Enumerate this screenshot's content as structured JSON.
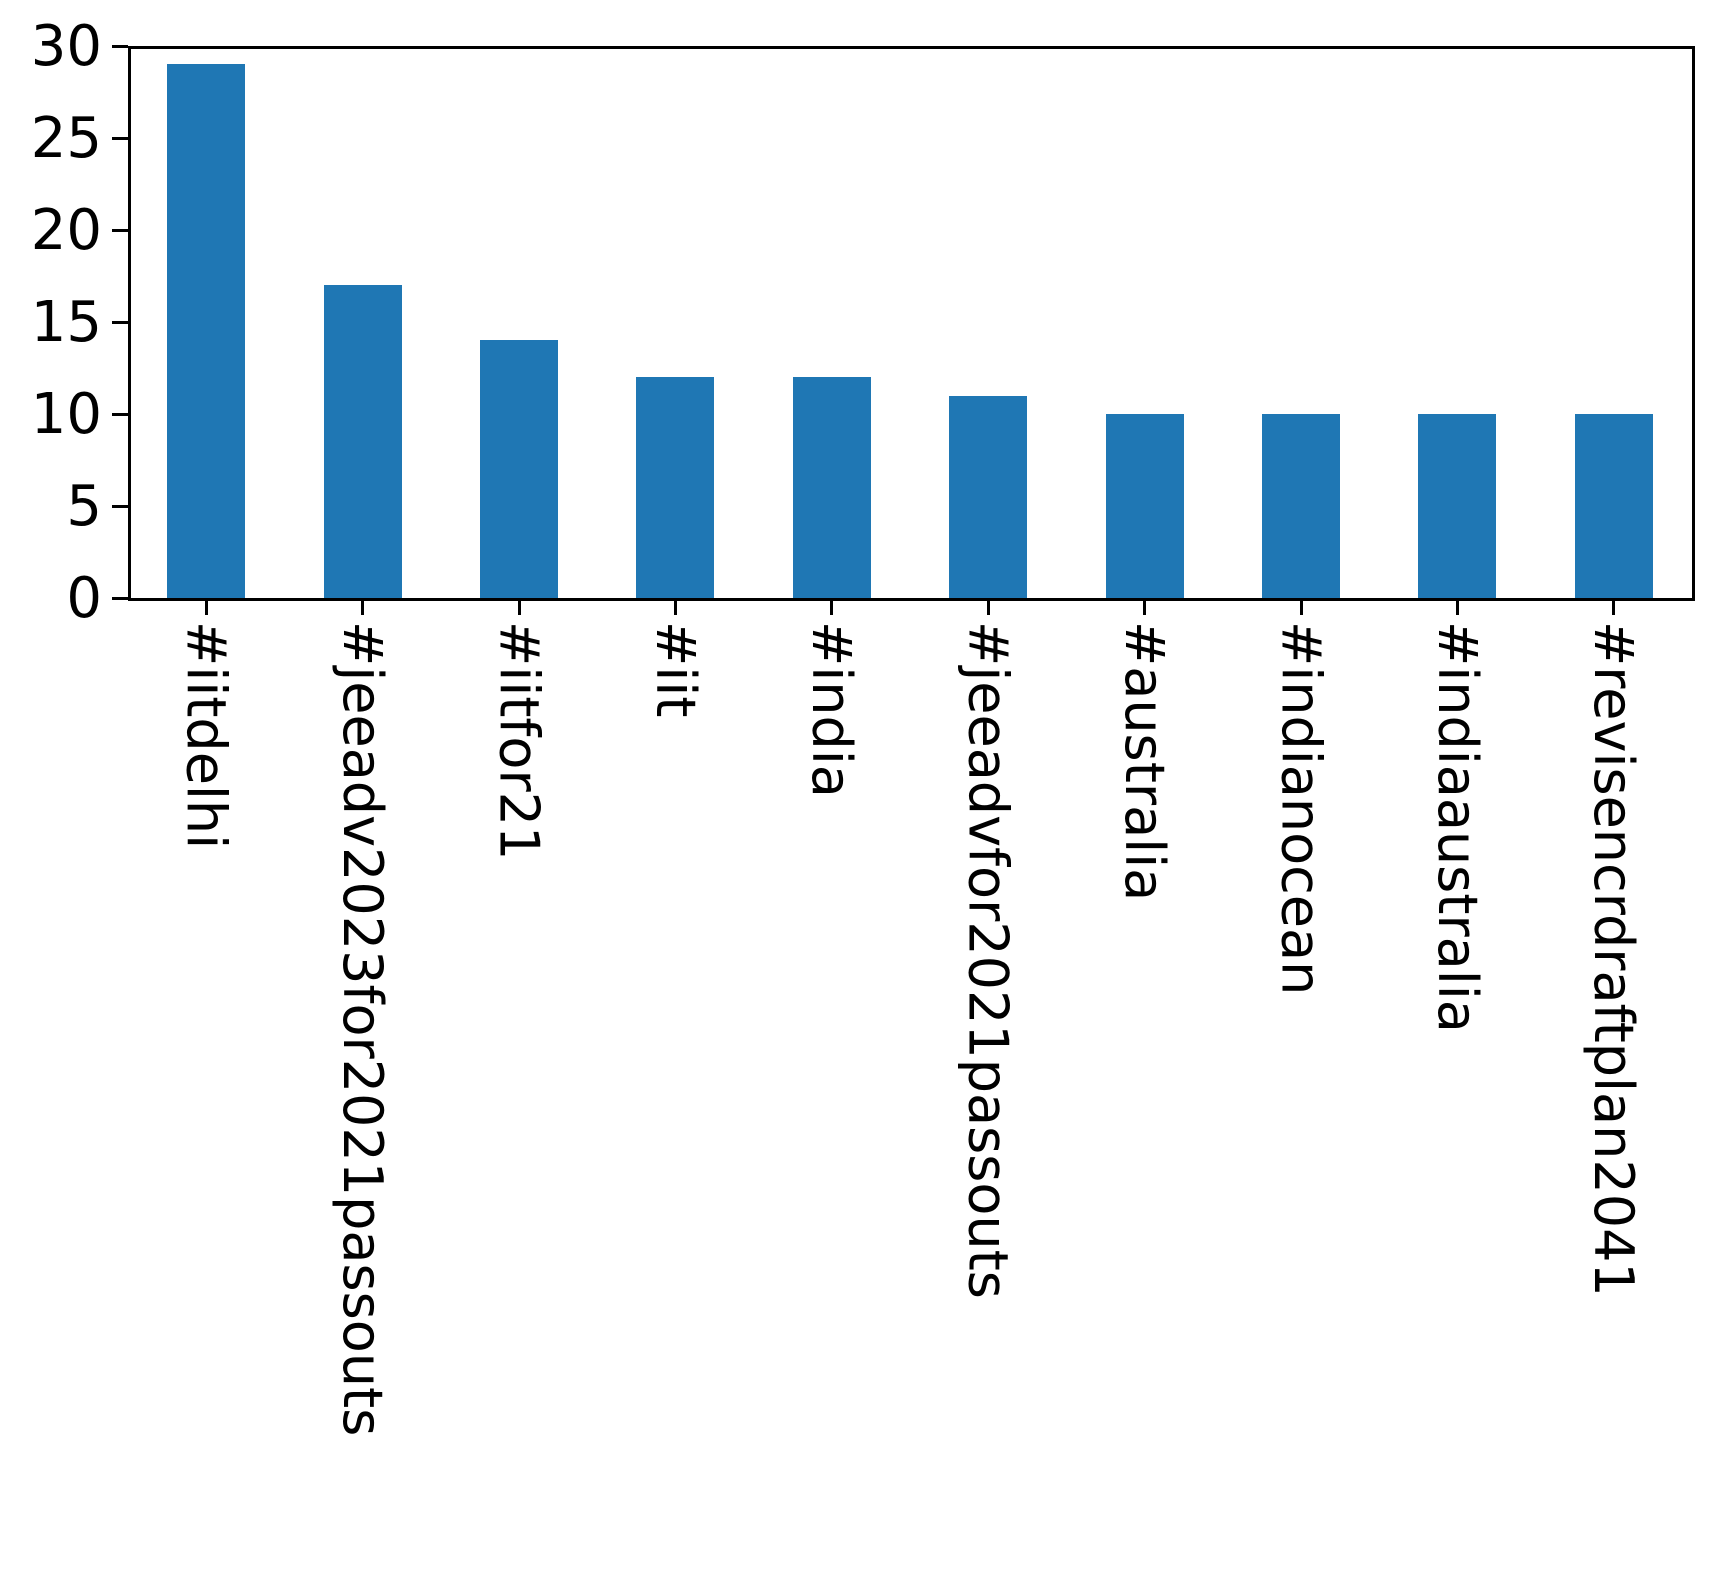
{
  "chart_data": {
    "type": "bar",
    "title": "",
    "xlabel": "",
    "ylabel": "",
    "categories": [
      "#iitdelhi",
      "#jeeadv2023for2021passouts",
      "#iitfor21",
      "#iit",
      "#india",
      "#jeeadvfor2021passouts",
      "#australia",
      "#indianocean",
      "#indiaaustralia",
      "#revisencrdraftplan2041"
    ],
    "values": [
      29,
      17,
      14,
      12,
      12,
      11,
      10,
      10,
      10,
      10
    ],
    "ylim": [
      0,
      30
    ],
    "yticks": [
      0,
      5,
      10,
      15,
      20,
      25,
      30
    ],
    "ytick_labels": [
      "0",
      "5",
      "10",
      "15",
      "20",
      "25",
      "30"
    ],
    "bar_color": "#1f77b4",
    "axis_color": "#000000",
    "grid": false,
    "legend": null,
    "bar_width_fraction": 0.5,
    "xtick_label_rotation": "vertical-top-to-bottom"
  }
}
